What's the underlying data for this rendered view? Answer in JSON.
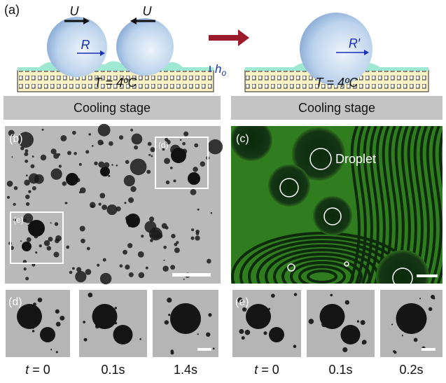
{
  "panel_a": {
    "label": "(a)",
    "left": {
      "velocity_left": "U",
      "velocity_right": "U",
      "radius": "R",
      "film_thickness": {
        "symbol": "h",
        "subscript": "o"
      },
      "temperature": "T = 4ºC",
      "stage": "Cooling stage"
    },
    "right": {
      "radius": "R′",
      "temperature": "T = 4ºC",
      "stage": "Cooling stage"
    }
  },
  "panel_b": {
    "label": "(b)",
    "inset_d": "(d)",
    "inset_e": "(e)"
  },
  "panel_c": {
    "label": "(c)",
    "annotation": "Droplet"
  },
  "panel_d": {
    "label": "(d)",
    "times": [
      "t = 0",
      "0.1s",
      "1.4s"
    ]
  },
  "panel_e": {
    "label": "(e)",
    "times": [
      "t = 0",
      "0.1s",
      "0.2s"
    ]
  }
}
